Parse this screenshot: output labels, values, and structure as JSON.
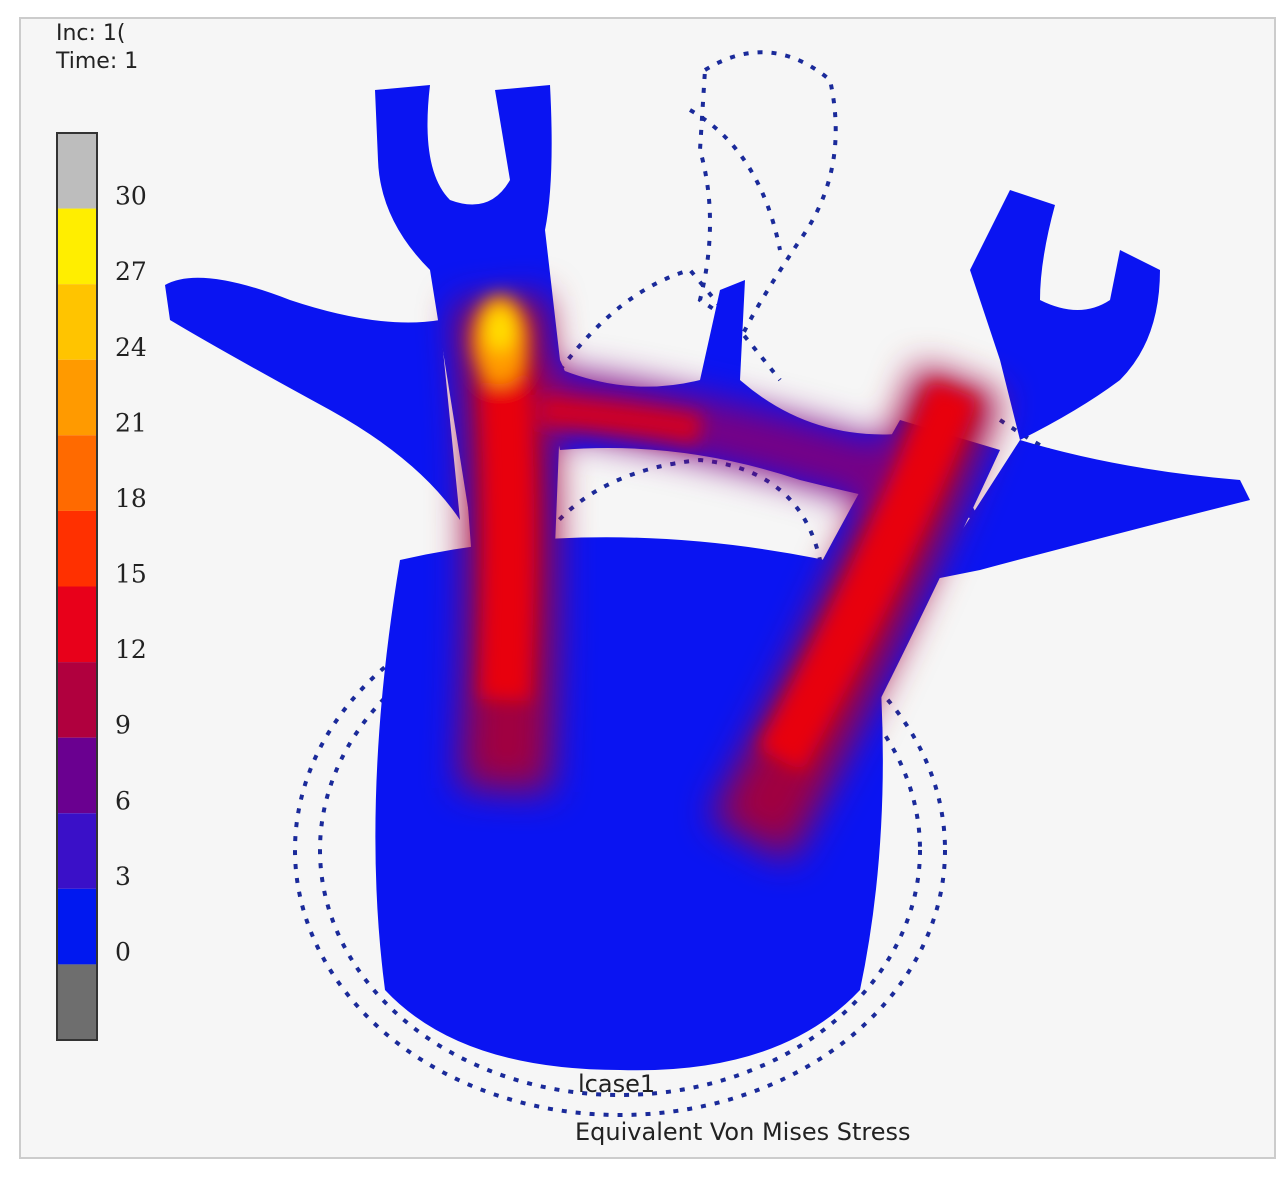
{
  "header": {
    "inc": "Inc:  1(",
    "time": "Time:  1"
  },
  "legend": {
    "labels": [
      30,
      27,
      24,
      21,
      18,
      15,
      12,
      9,
      6,
      3,
      0
    ],
    "colors": [
      "#bdbdbd",
      "#ffee00",
      "#ffc400",
      "#ff9a00",
      "#ff6a00",
      "#ff3000",
      "#e8001a",
      "#b0003e",
      "#6a0090",
      "#3a10c8",
      "#0018f0",
      "#6e6e6e"
    ]
  },
  "footer": {
    "case": "lcase1",
    "title": "Equivalent Von Mises Stress"
  }
}
